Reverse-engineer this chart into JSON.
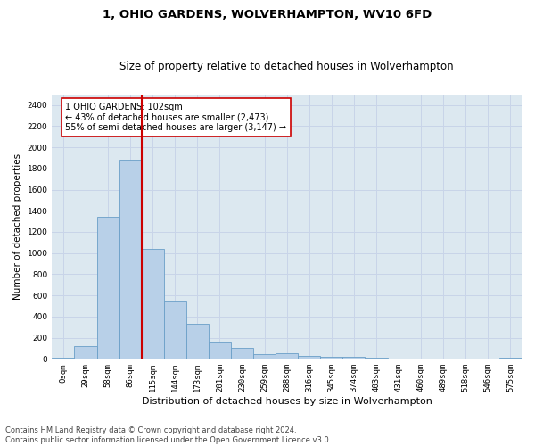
{
  "title": "1, OHIO GARDENS, WOLVERHAMPTON, WV10 6FD",
  "subtitle": "Size of property relative to detached houses in Wolverhampton",
  "xlabel": "Distribution of detached houses by size in Wolverhampton",
  "ylabel": "Number of detached properties",
  "footer_line1": "Contains HM Land Registry data © Crown copyright and database right 2024.",
  "footer_line2": "Contains public sector information licensed under the Open Government Licence v3.0.",
  "bar_labels": [
    "0sqm",
    "29sqm",
    "58sqm",
    "86sqm",
    "115sqm",
    "144sqm",
    "173sqm",
    "201sqm",
    "230sqm",
    "259sqm",
    "288sqm",
    "316sqm",
    "345sqm",
    "374sqm",
    "403sqm",
    "431sqm",
    "460sqm",
    "489sqm",
    "518sqm",
    "546sqm",
    "575sqm"
  ],
  "bar_values": [
    10,
    120,
    1340,
    1880,
    1040,
    540,
    330,
    165,
    100,
    45,
    55,
    30,
    20,
    20,
    10,
    5,
    5,
    0,
    5,
    0,
    15
  ],
  "bar_color": "#b8d0e8",
  "bar_edge_color": "#6a9fc8",
  "vline_x": 3.5,
  "vline_color": "#cc0000",
  "annotation_text": "1 OHIO GARDENS: 102sqm\n← 43% of detached houses are smaller (2,473)\n55% of semi-detached houses are larger (3,147) →",
  "annotation_box_color": "#ffffff",
  "annotation_box_edge_color": "#cc0000",
  "ylim": [
    0,
    2500
  ],
  "yticks": [
    0,
    200,
    400,
    600,
    800,
    1000,
    1200,
    1400,
    1600,
    1800,
    2000,
    2200,
    2400
  ],
  "grid_color": "#c8d4e8",
  "background_color": "#dce8f0",
  "title_fontsize": 9.5,
  "subtitle_fontsize": 8.5,
  "xlabel_fontsize": 8,
  "ylabel_fontsize": 7.5,
  "tick_fontsize": 6.5,
  "footer_fontsize": 6,
  "annotation_fontsize": 7
}
